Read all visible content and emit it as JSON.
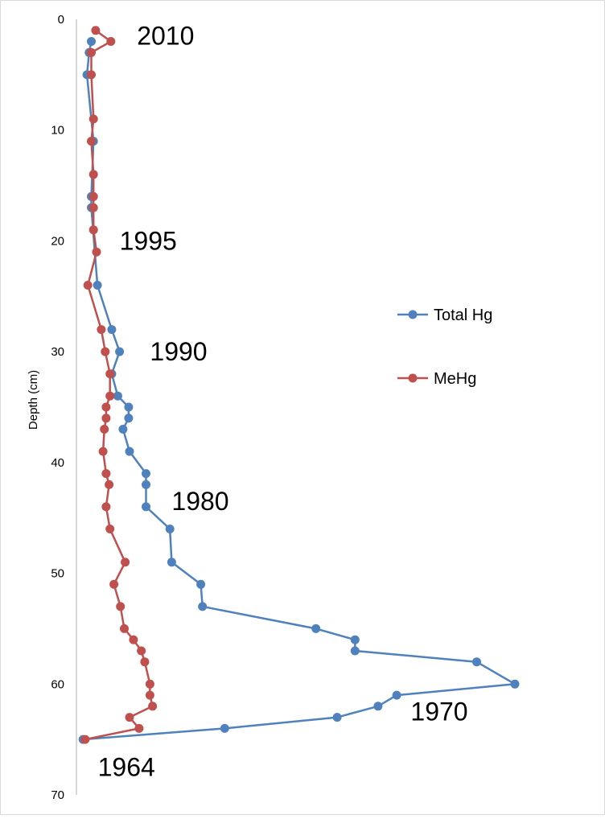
{
  "chart_data": {
    "type": "line",
    "title": "",
    "xlabel": "",
    "ylabel": "Depth (cm)",
    "ylim": [
      0,
      70
    ],
    "y_reversed": true,
    "y_ticks": [
      "0",
      "10",
      "20",
      "30",
      "40",
      "50",
      "60",
      "70"
    ],
    "grid": false,
    "legend_position": "right",
    "x_axis_visible": false,
    "x_relative_range": [
      0,
      100
    ],
    "series": [
      {
        "name": "Total Hg",
        "color": "#4f81bd",
        "points": [
          {
            "x": 2.5,
            "y": 2
          },
          {
            "x": 2.0,
            "y": 3
          },
          {
            "x": 1.5,
            "y": 5
          },
          {
            "x": 3.0,
            "y": 11
          },
          {
            "x": 2.5,
            "y": 16
          },
          {
            "x": 2.5,
            "y": 17
          },
          {
            "x": 3.9,
            "y": 24
          },
          {
            "x": 7.2,
            "y": 28
          },
          {
            "x": 9.0,
            "y": 30
          },
          {
            "x": 7.2,
            "y": 32
          },
          {
            "x": 8.6,
            "y": 34
          },
          {
            "x": 11.1,
            "y": 35
          },
          {
            "x": 11.1,
            "y": 36
          },
          {
            "x": 9.8,
            "y": 37
          },
          {
            "x": 11.3,
            "y": 39
          },
          {
            "x": 15.1,
            "y": 41
          },
          {
            "x": 15.1,
            "y": 42
          },
          {
            "x": 15.1,
            "y": 44
          },
          {
            "x": 20.6,
            "y": 46
          },
          {
            "x": 21.0,
            "y": 49
          },
          {
            "x": 27.7,
            "y": 51
          },
          {
            "x": 28.1,
            "y": 53
          },
          {
            "x": 54.2,
            "y": 55
          },
          {
            "x": 63.2,
            "y": 56
          },
          {
            "x": 63.2,
            "y": 57
          },
          {
            "x": 91.2,
            "y": 58
          },
          {
            "x": 100.0,
            "y": 60
          },
          {
            "x": 72.8,
            "y": 61
          },
          {
            "x": 68.5,
            "y": 62
          },
          {
            "x": 59.1,
            "y": 63
          },
          {
            "x": 33.2,
            "y": 64
          },
          {
            "x": 0.6,
            "y": 65
          }
        ]
      },
      {
        "name": "MeHg",
        "color": "#c0504d",
        "points": [
          {
            "x": 3.5,
            "y": 1
          },
          {
            "x": 7.0,
            "y": 2
          },
          {
            "x": 2.5,
            "y": 3
          },
          {
            "x": 2.5,
            "y": 5
          },
          {
            "x": 3.0,
            "y": 9
          },
          {
            "x": 2.5,
            "y": 11
          },
          {
            "x": 3.0,
            "y": 14
          },
          {
            "x": 3.0,
            "y": 16
          },
          {
            "x": 3.0,
            "y": 17
          },
          {
            "x": 3.0,
            "y": 19
          },
          {
            "x": 3.7,
            "y": 21
          },
          {
            "x": 1.7,
            "y": 24
          },
          {
            "x": 4.8,
            "y": 28
          },
          {
            "x": 5.7,
            "y": 30
          },
          {
            "x": 6.8,
            "y": 32
          },
          {
            "x": 6.8,
            "y": 34
          },
          {
            "x": 5.9,
            "y": 35
          },
          {
            "x": 5.9,
            "y": 36
          },
          {
            "x": 5.5,
            "y": 37
          },
          {
            "x": 5.2,
            "y": 39
          },
          {
            "x": 5.9,
            "y": 41
          },
          {
            "x": 6.6,
            "y": 42
          },
          {
            "x": 5.9,
            "y": 44
          },
          {
            "x": 6.8,
            "y": 46
          },
          {
            "x": 10.3,
            "y": 49
          },
          {
            "x": 7.7,
            "y": 51
          },
          {
            "x": 9.2,
            "y": 53
          },
          {
            "x": 10.1,
            "y": 55
          },
          {
            "x": 12.2,
            "y": 56
          },
          {
            "x": 14.0,
            "y": 57
          },
          {
            "x": 14.8,
            "y": 58
          },
          {
            "x": 16.0,
            "y": 60
          },
          {
            "x": 16.0,
            "y": 61
          },
          {
            "x": 16.6,
            "y": 62
          },
          {
            "x": 11.3,
            "y": 63
          },
          {
            "x": 13.5,
            "y": 64
          },
          {
            "x": 1.1,
            "y": 65
          }
        ]
      }
    ],
    "annotations": [
      {
        "text": "2010",
        "x": 13,
        "y": 1.5
      },
      {
        "text": "1995",
        "x": 9,
        "y": 20
      },
      {
        "text": "1990",
        "x": 16,
        "y": 30
      },
      {
        "text": "1980",
        "x": 21,
        "y": 43.5
      },
      {
        "text": "1970",
        "x": 76,
        "y": 62.5
      },
      {
        "text": "1964",
        "x": 4,
        "y": 67.5
      }
    ]
  }
}
